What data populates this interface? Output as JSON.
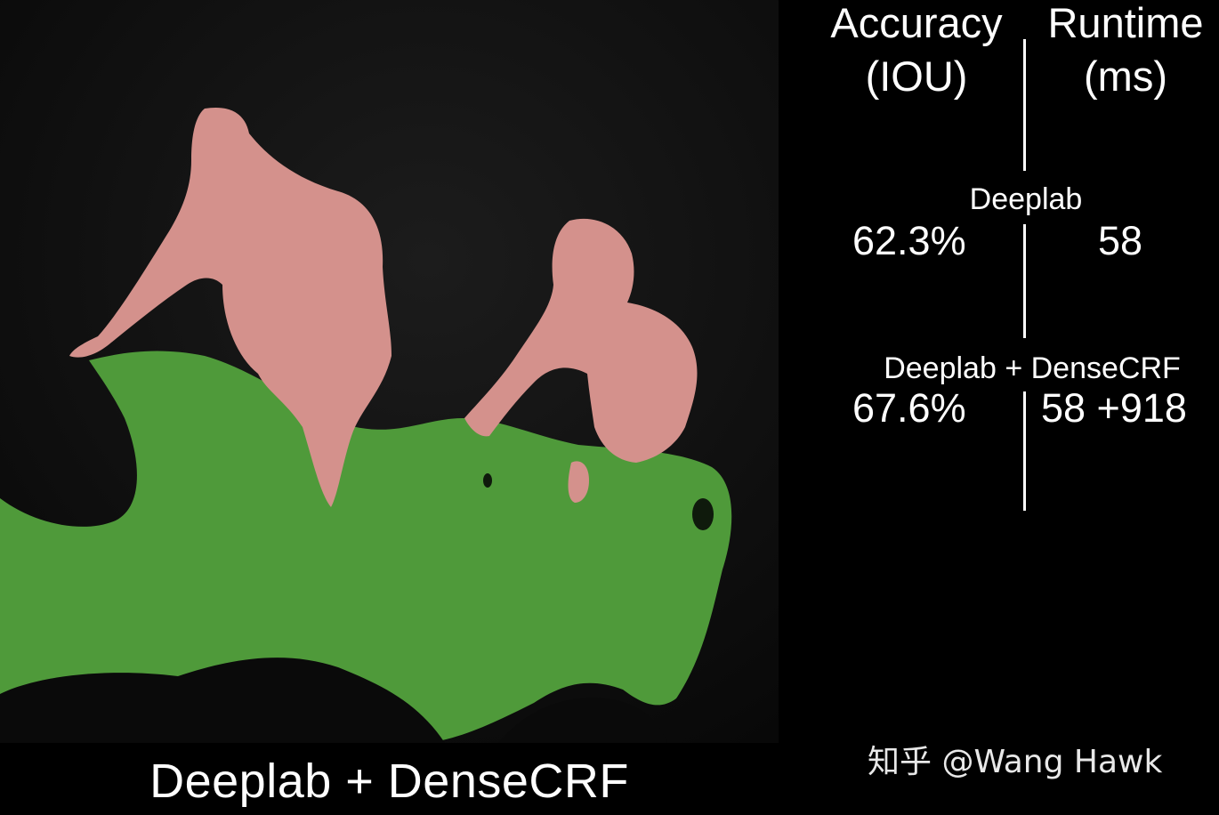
{
  "caption": "Deeplab + DenseCRF",
  "table": {
    "headers": {
      "accuracy": [
        "Accuracy",
        "(IOU)"
      ],
      "runtime": [
        "Runtime",
        "(ms)"
      ]
    },
    "rows": [
      {
        "method": "Deeplab",
        "accuracy": "62.3%",
        "runtime": "58"
      },
      {
        "method": "Deeplab + DenseCRF",
        "accuracy": "67.6%",
        "runtime": "58 +918"
      }
    ]
  },
  "watermark": "知乎 @Wang Hawk",
  "colors": {
    "person_mask": "#d4918c",
    "horse_mask": "#4f9a3a",
    "background": "#000000"
  }
}
